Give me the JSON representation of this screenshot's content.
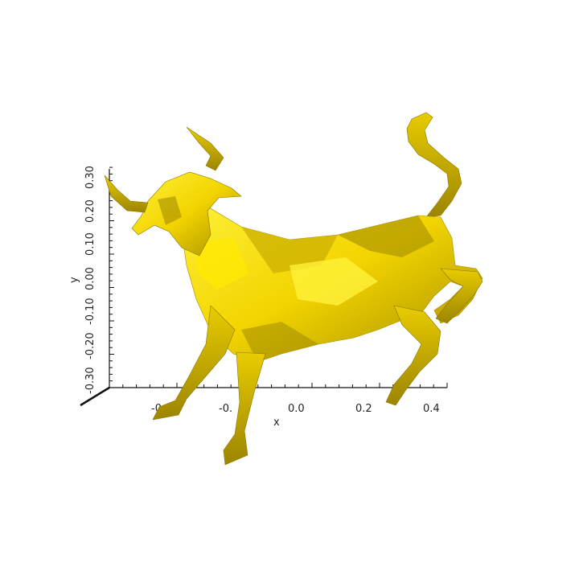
{
  "axes": {
    "x": {
      "title": "x",
      "tick_labels": [
        "-0.",
        "-0.",
        "0.0",
        "0.2",
        "0.4"
      ]
    },
    "y": {
      "title": "y",
      "tick_labels": [
        "-0.30",
        "-0.20",
        "-0.10",
        "0.00",
        "0.10",
        "0.20",
        "0.30"
      ]
    }
  },
  "model": {
    "subject": "bull",
    "color": "#f2d400",
    "shade_dark": "#8a7600",
    "shade_light": "#fff23a"
  }
}
